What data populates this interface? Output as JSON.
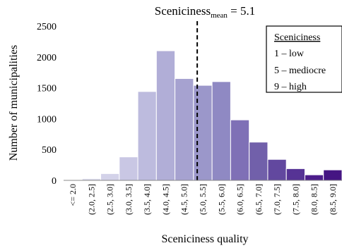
{
  "chart_data": {
    "type": "bar",
    "title_prefix": "Sceniciness",
    "title_subscript": "mean",
    "title_suffix": " = 5.1",
    "xlabel": "Sceniciness quality",
    "ylabel": "Number of municipalities",
    "ylim": [
      0,
      2500
    ],
    "yticks": [
      "0",
      "500",
      "1000",
      "1500",
      "2000",
      "2500"
    ],
    "grid": false,
    "categories": [
      "<= 2.0",
      "(2.0, 2.5]",
      "(2.5, 3.0]",
      "(3.0, 3.5]",
      "(3.5, 4.0]",
      "(4.0, 4.5]",
      "(4.5, 5.0]",
      "(5.0, 5.5]",
      "(5.5, 6.0]",
      "(6.0, 6.5]",
      "(6.5, 7.0]",
      "(7.0, 7.5]",
      "(7.5, 8.0]",
      "(8.0, 8.5]",
      "(8.5, 9.0]"
    ],
    "values": [
      5,
      30,
      110,
      380,
      1440,
      2100,
      1650,
      1540,
      1600,
      980,
      620,
      340,
      190,
      90,
      170
    ],
    "colors": [
      "#e4e3f1",
      "#dcdbed",
      "#d3d2e9",
      "#c9c7e4",
      "#bdbbde",
      "#b1aed7",
      "#a6a2d0",
      "#9b97ca",
      "#8f89c3",
      "#7f70b6",
      "#7160aa",
      "#62489f",
      "#563395",
      "#4c1d8b",
      "#451583"
    ],
    "mean_value": 5.1,
    "mean_line_style": "dashed",
    "legend": {
      "placement": "top-right",
      "title": "Sceniciness",
      "items": [
        "1 – low",
        "5 – mediocre",
        "9 – high"
      ]
    }
  }
}
